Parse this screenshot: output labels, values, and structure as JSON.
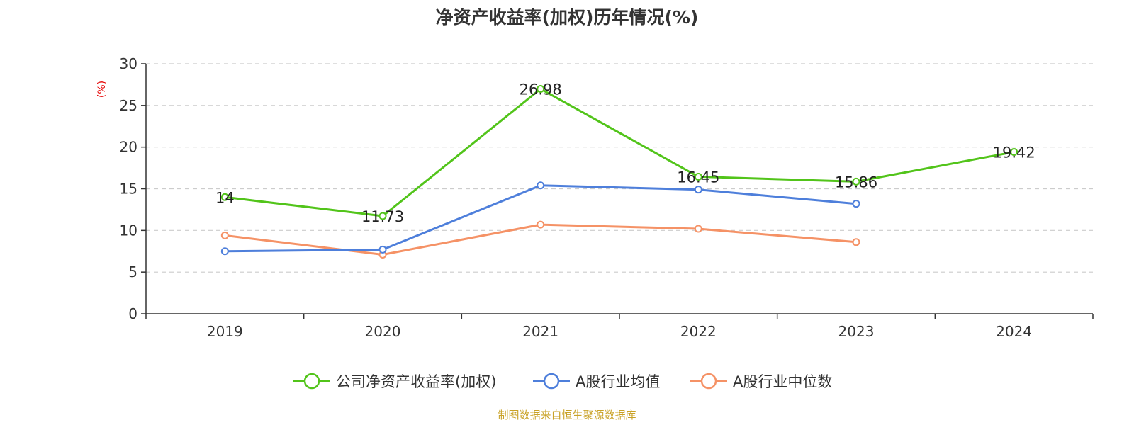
{
  "chart_data": {
    "type": "line",
    "title": "净资产收益率(加权)历年情况(%)",
    "ylabel": "(%)",
    "xlabel": "",
    "categories": [
      "2019",
      "2020",
      "2021",
      "2022",
      "2023",
      "2024"
    ],
    "ylim": [
      0,
      30
    ],
    "yticks": [
      0,
      5,
      10,
      15,
      20,
      25,
      30
    ],
    "grid": true,
    "legend_position": "bottom",
    "series": [
      {
        "name": "公司净资产收益率(加权)",
        "color": "#52c41a",
        "values": [
          14,
          11.73,
          26.98,
          16.45,
          15.86,
          19.42
        ],
        "data_labels": [
          "14",
          "11.73",
          "26.98",
          "16.45",
          "15.86",
          "19.42"
        ]
      },
      {
        "name": "A股行业均值",
        "color": "#4e7fdb",
        "values": [
          7.5,
          7.7,
          15.4,
          14.9,
          13.2,
          null
        ]
      },
      {
        "name": "A股行业中位数",
        "color": "#f59266",
        "values": [
          9.4,
          7.1,
          10.7,
          10.2,
          8.6,
          null
        ]
      }
    ]
  },
  "source": {
    "text": "制图数据来自恒生聚源数据库",
    "color": "#c9a227"
  },
  "y_unit_color": "#e60000"
}
